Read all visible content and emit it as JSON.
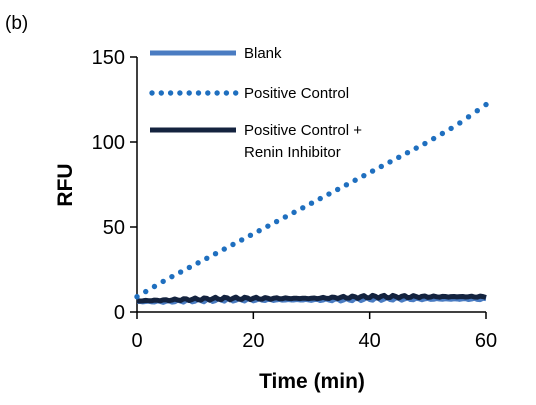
{
  "panel_label": "(b)",
  "chart_data": {
    "type": "line",
    "xlabel": "Time (min)",
    "ylabel": "RFU",
    "xlim": [
      0,
      60
    ],
    "ylim": [
      0,
      150
    ],
    "x_ticks": [
      0,
      20,
      40,
      60
    ],
    "y_ticks": [
      0,
      50,
      100,
      150
    ],
    "grid": false,
    "legend_placement": "top-left",
    "series": [
      {
        "name": "Blank",
        "style": "solid",
        "color": "#4a7cc2",
        "x": [
          0,
          5,
          10,
          15,
          20,
          25,
          30,
          35,
          40,
          45,
          50,
          55,
          60
        ],
        "values": [
          6,
          6,
          6.5,
          7,
          7,
          7,
          7,
          7,
          7.5,
          7.5,
          7.5,
          7.5,
          7.5
        ]
      },
      {
        "name": "Positive Control",
        "style": "dotted",
        "color": "#1f6fbf",
        "x": [
          0,
          5,
          10,
          15,
          20,
          25,
          30,
          35,
          40,
          45,
          50,
          55,
          60
        ],
        "values": [
          9,
          19,
          28,
          37,
          46,
          55,
          64,
          73,
          82,
          91,
          100,
          110,
          122
        ]
      },
      {
        "name": "Positive Control + Renin Inhibitor",
        "legend_lines": [
          "Positive Control +",
          "Renin Inhibitor"
        ],
        "style": "solid",
        "color": "#14233f",
        "x": [
          0,
          5,
          10,
          15,
          20,
          25,
          30,
          35,
          40,
          45,
          50,
          55,
          60
        ],
        "values": [
          6.5,
          7,
          7.5,
          8,
          8,
          8,
          8,
          8.5,
          9,
          9,
          9,
          9,
          9
        ]
      }
    ]
  }
}
